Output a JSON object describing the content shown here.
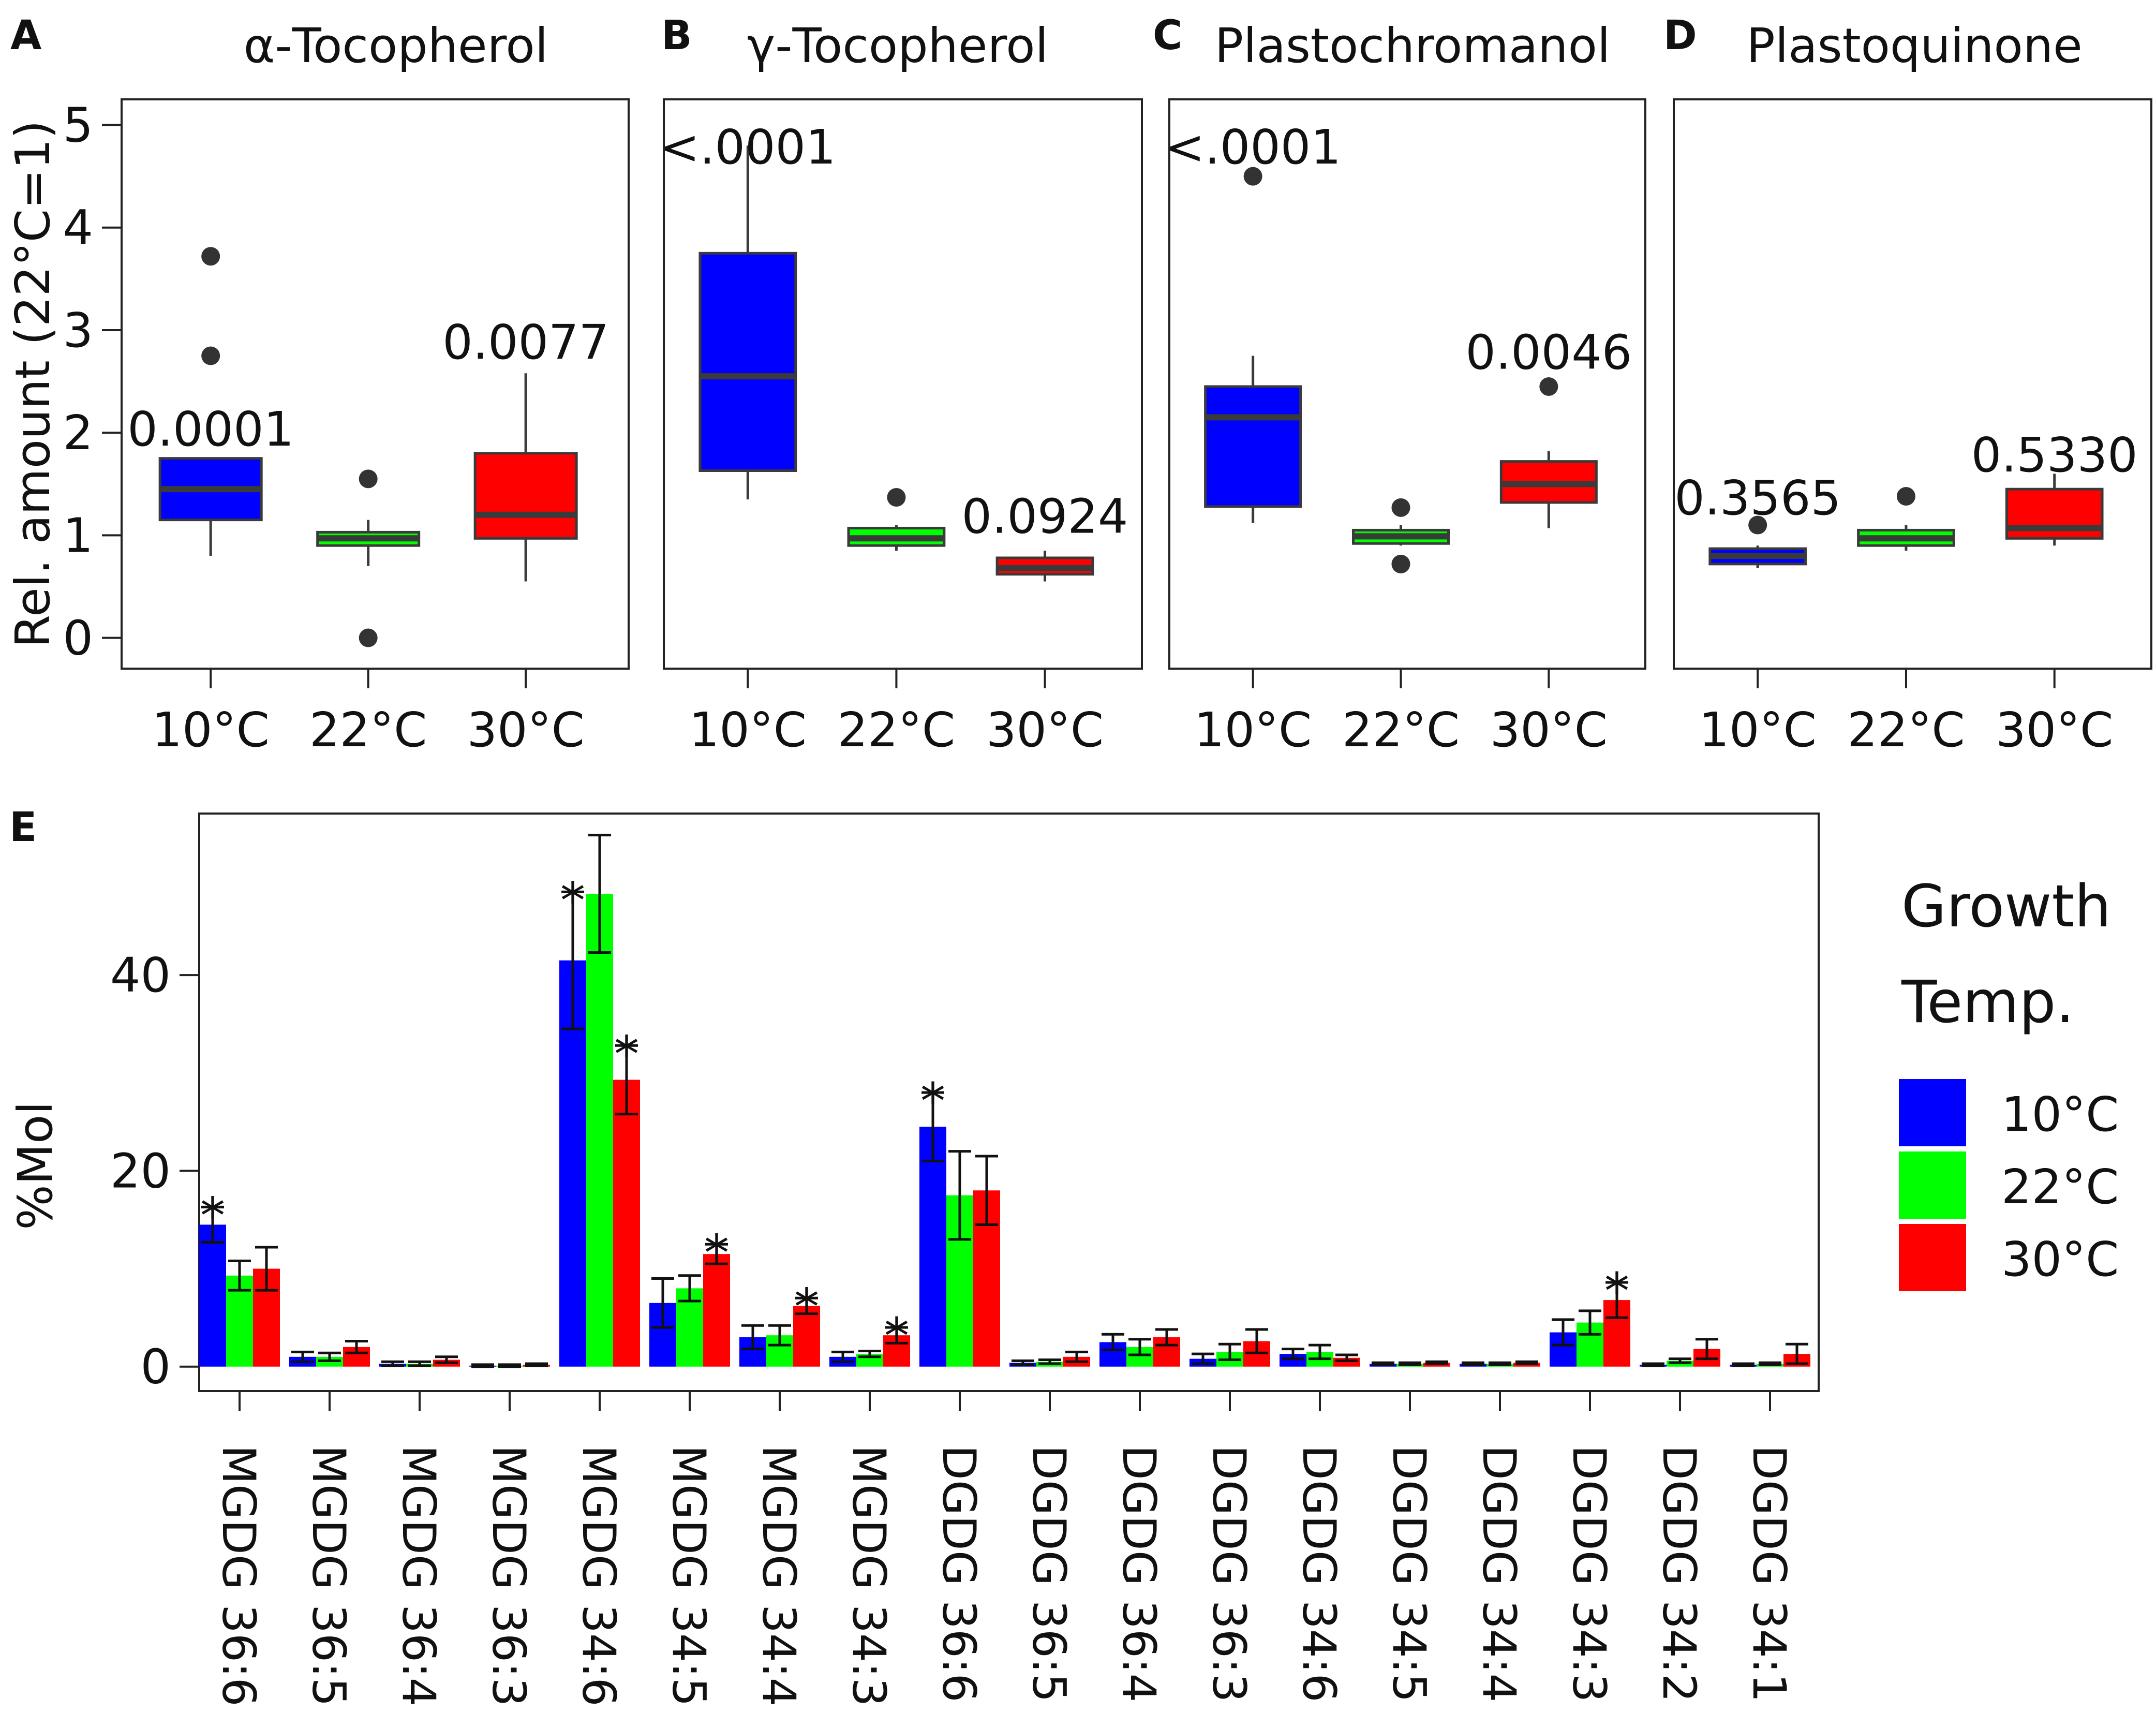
{
  "chart_data": [
    {
      "id": "A",
      "type": "box",
      "panel_label": "A",
      "title": "α-Tocopherol",
      "ylabel": "Rel. amount (22°C=1)",
      "ylim": [
        -0.3,
        5.25
      ],
      "yticks": [
        "0",
        "1",
        "2",
        "3",
        "4",
        "5"
      ],
      "categories": [
        "10°C",
        "22°C",
        "30°C"
      ],
      "colors": [
        "#0000ff",
        "#00ff00",
        "#ff0000"
      ],
      "boxes": [
        {
          "q1": 1.15,
          "median": 1.45,
          "q3": 1.75,
          "wlow": 0.8,
          "whigh": 1.75,
          "outliers": [
            2.75,
            3.72
          ]
        },
        {
          "q1": 0.9,
          "median": 0.97,
          "q3": 1.03,
          "wlow": 0.7,
          "whigh": 1.15,
          "outliers": [
            0.0,
            1.55
          ]
        },
        {
          "q1": 0.97,
          "median": 1.2,
          "q3": 1.8,
          "wlow": 0.55,
          "whigh": 2.58,
          "outliers": []
        }
      ],
      "pvalues": [
        {
          "text": "0.0001",
          "category": 0,
          "y": 2.05
        },
        {
          "text": "0.0077",
          "category": 2,
          "y": 2.9
        }
      ]
    },
    {
      "id": "B",
      "type": "box",
      "panel_label": "B",
      "title": "γ-Tocopherol",
      "ylabel": "",
      "ylim": [
        -0.3,
        5.25
      ],
      "yticks": [],
      "categories": [
        "10°C",
        "22°C",
        "30°C"
      ],
      "colors": [
        "#0000ff",
        "#00ff00",
        "#ff0000"
      ],
      "boxes": [
        {
          "q1": 1.63,
          "median": 2.55,
          "q3": 3.75,
          "wlow": 1.35,
          "whigh": 4.8,
          "outliers": []
        },
        {
          "q1": 0.9,
          "median": 0.97,
          "q3": 1.07,
          "wlow": 0.85,
          "whigh": 1.1,
          "outliers": [
            1.37
          ]
        },
        {
          "q1": 0.62,
          "median": 0.68,
          "q3": 0.78,
          "wlow": 0.55,
          "whigh": 0.85,
          "outliers": []
        }
      ],
      "pvalues": [
        {
          "text": "<.0001",
          "category": 0,
          "y": 4.8
        },
        {
          "text": "0.0924",
          "category": 2,
          "y": 1.2
        }
      ]
    },
    {
      "id": "C",
      "type": "box",
      "panel_label": "C",
      "title": "Plastochromanol",
      "ylabel": "",
      "ylim": [
        -0.3,
        5.25
      ],
      "yticks": [],
      "categories": [
        "10°C",
        "22°C",
        "30°C"
      ],
      "colors": [
        "#0000ff",
        "#00ff00",
        "#ff0000"
      ],
      "boxes": [
        {
          "q1": 1.28,
          "median": 2.15,
          "q3": 2.45,
          "wlow": 1.12,
          "whigh": 2.75,
          "outliers": [
            4.5
          ]
        },
        {
          "q1": 0.92,
          "median": 0.99,
          "q3": 1.05,
          "wlow": 0.9,
          "whigh": 1.1,
          "outliers": [
            0.72,
            1.27
          ]
        },
        {
          "q1": 1.32,
          "median": 1.5,
          "q3": 1.72,
          "wlow": 1.07,
          "whigh": 1.82,
          "outliers": [
            2.45
          ]
        }
      ],
      "pvalues": [
        {
          "text": "<.0001",
          "category": 0,
          "y": 4.8
        },
        {
          "text": "0.0046",
          "category": 2,
          "y": 2.8
        }
      ]
    },
    {
      "id": "D",
      "type": "box",
      "panel_label": "D",
      "title": "Plastoquinone",
      "ylabel": "",
      "ylim": [
        -0.3,
        5.25
      ],
      "yticks": [],
      "categories": [
        "10°C",
        "22°C",
        "30°C"
      ],
      "colors": [
        "#0000ff",
        "#00ff00",
        "#ff0000"
      ],
      "boxes": [
        {
          "q1": 0.72,
          "median": 0.8,
          "q3": 0.87,
          "wlow": 0.68,
          "whigh": 0.9,
          "outliers": [
            1.1
          ]
        },
        {
          "q1": 0.9,
          "median": 0.97,
          "q3": 1.05,
          "wlow": 0.85,
          "whigh": 1.1,
          "outliers": [
            1.38
          ]
        },
        {
          "q1": 0.97,
          "median": 1.07,
          "q3": 1.45,
          "wlow": 0.9,
          "whigh": 1.6,
          "outliers": []
        }
      ],
      "pvalues": [
        {
          "text": "0.3565",
          "category": 0,
          "y": 1.38
        },
        {
          "text": "0.5330",
          "category": 2,
          "y": 1.8
        }
      ]
    },
    {
      "id": "E",
      "type": "bar",
      "panel_label": "E",
      "title": "",
      "ylabel": "%Mol",
      "ylim": [
        -2.5,
        56.5
      ],
      "yticks": [
        "0",
        "20",
        "40"
      ],
      "categories": [
        "MGDG 36:6",
        "MGDG 36:5",
        "MGDG 36:4",
        "MGDG 36:3",
        "MGDG 34:6",
        "MGDG 34:5",
        "MGDG 34:4",
        "MGDG 34:3",
        "DGDG 36:6",
        "DGDG 36:5",
        "DGDG 36:4",
        "DGDG 36:3",
        "DGDG 34:6",
        "DGDG 34:5",
        "DGDG 34:4",
        "DGDG 34:3",
        "DGDG 34:2",
        "DGDG 34:1"
      ],
      "series": [
        {
          "name": "10°C",
          "color": "#0000ff",
          "values": [
            14.5,
            1.0,
            0.3,
            0.1,
            41.5,
            6.5,
            3.0,
            1.0,
            24.5,
            0.4,
            2.5,
            0.8,
            1.3,
            0.3,
            0.3,
            3.5,
            0.2,
            0.2
          ],
          "errors": [
            1.8,
            0.5,
            0.2,
            0.1,
            7.0,
            2.5,
            1.2,
            0.5,
            3.5,
            0.2,
            0.8,
            0.5,
            0.5,
            0.1,
            0.1,
            1.3,
            0.1,
            0.1
          ]
        },
        {
          "name": "22°C",
          "color": "#00ff00",
          "values": [
            9.3,
            1.0,
            0.3,
            0.1,
            48.3,
            8.0,
            3.2,
            1.3,
            17.5,
            0.5,
            2.0,
            1.5,
            1.5,
            0.3,
            0.3,
            4.5,
            0.6,
            0.3
          ],
          "errors": [
            1.5,
            0.4,
            0.2,
            0.1,
            6.0,
            1.3,
            1.0,
            0.3,
            4.5,
            0.2,
            0.8,
            0.8,
            0.7,
            0.1,
            0.1,
            1.2,
            0.2,
            0.1
          ]
        },
        {
          "name": "30°C",
          "color": "#ff0000",
          "values": [
            10.0,
            2.0,
            0.7,
            0.2,
            29.3,
            11.5,
            6.2,
            3.2,
            18.0,
            1.0,
            3.0,
            2.6,
            0.9,
            0.4,
            0.4,
            6.8,
            1.8,
            1.3
          ],
          "errors": [
            2.2,
            0.6,
            0.3,
            0.1,
            3.5,
            1.0,
            0.8,
            0.8,
            3.5,
            0.5,
            0.8,
            1.2,
            0.3,
            0.1,
            0.1,
            1.8,
            1.0,
            1.0
          ]
        }
      ],
      "significance": [
        {
          "text": "*",
          "category": 0,
          "series": 0
        },
        {
          "text": "*",
          "category": 4,
          "series": 0
        },
        {
          "text": "*",
          "category": 4,
          "series": 2
        },
        {
          "text": "*",
          "category": 5,
          "series": 2
        },
        {
          "text": "*",
          "category": 6,
          "series": 2
        },
        {
          "text": "*",
          "category": 7,
          "series": 2
        },
        {
          "text": "*",
          "category": 8,
          "series": 0
        },
        {
          "text": "*",
          "category": 15,
          "series": 2
        }
      ],
      "legend": {
        "title_line1": "Growth",
        "title_line2": "Temp.",
        "entries": [
          "10°C",
          "22°C",
          "30°C"
        ],
        "placement": "right"
      }
    }
  ]
}
